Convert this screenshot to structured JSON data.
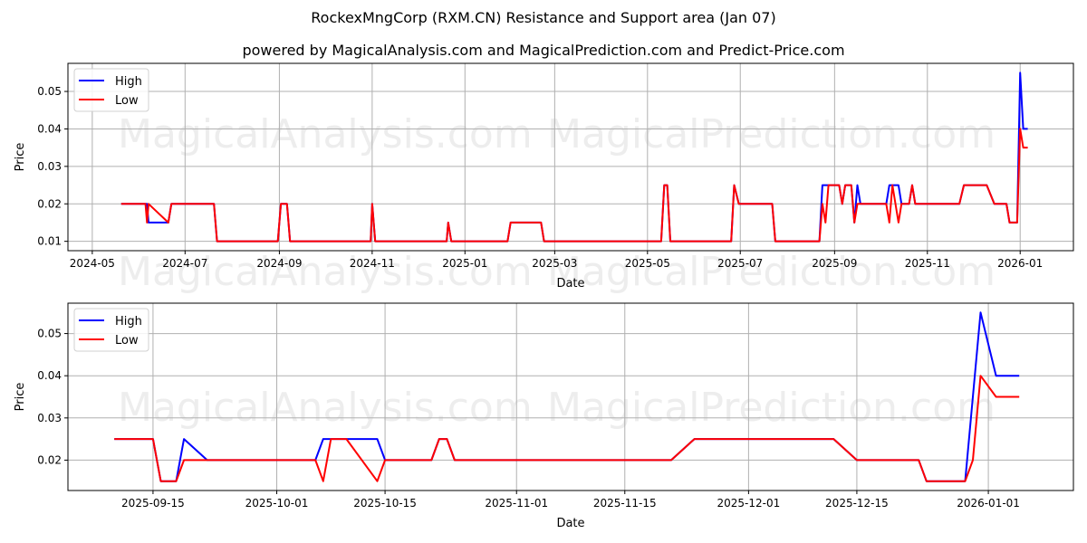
{
  "title": "RockexMngCorp (RXM.CN) Resistance and Support area (Jan 07)",
  "subtitle": "powered by MagicalAnalysis.com and MagicalPrediction.com and Predict-Price.com",
  "watermarks": [
    "MagicalAnalysis.com",
    "MagicalPrediction.com"
  ],
  "colors": {
    "high": "#0000ff",
    "low": "#ff0000",
    "grid": "#b0b0b0"
  },
  "chart_data": [
    {
      "type": "line",
      "title": "",
      "xlabel": "Date",
      "ylabel": "Price",
      "grid": true,
      "legend_position": "upper left",
      "legend": [
        "High",
        "Low"
      ],
      "x_tick_labels": [
        "2024-05",
        "2024-07",
        "2024-09",
        "2024-11",
        "2025-01",
        "2025-03",
        "2025-05",
        "2025-07",
        "2025-09",
        "2025-11",
        "2026-01"
      ],
      "y_tick_labels": [
        "0.01",
        "0.02",
        "0.03",
        "0.04",
        "0.05"
      ],
      "xlim": [
        "2024-04-15",
        "2026-02-05"
      ],
      "ylim": [
        0.0075,
        0.0575
      ],
      "x": [
        "2024-05-20",
        "2024-06-05",
        "2024-06-06",
        "2024-06-07",
        "2024-06-20",
        "2024-06-22",
        "2024-07-20",
        "2024-07-22",
        "2024-08-31",
        "2024-09-02",
        "2024-09-06",
        "2024-09-08",
        "2024-10-31",
        "2024-11-01",
        "2024-11-03",
        "2024-12-20",
        "2024-12-21",
        "2024-12-23",
        "2025-01-29",
        "2025-01-31",
        "2025-02-20",
        "2025-02-22",
        "2025-05-10",
        "2025-05-12",
        "2025-05-14",
        "2025-05-16",
        "2025-06-25",
        "2025-06-27",
        "2025-06-30",
        "2025-07-22",
        "2025-07-24",
        "2025-08-22",
        "2025-08-24",
        "2025-08-26",
        "2025-08-28",
        "2025-09-04",
        "2025-09-06",
        "2025-09-08",
        "2025-09-12",
        "2025-09-14",
        "2025-09-16",
        "2025-09-18",
        "2025-09-20",
        "2025-10-05",
        "2025-10-07",
        "2025-10-09",
        "2025-10-13",
        "2025-10-15",
        "2025-10-20",
        "2025-10-22",
        "2025-10-24",
        "2025-11-22",
        "2025-11-25",
        "2025-12-10",
        "2025-12-15",
        "2025-12-23",
        "2025-12-25",
        "2025-12-30",
        "2026-01-01",
        "2026-01-03",
        "2026-01-06"
      ],
      "series": [
        {
          "name": "High",
          "color": "#0000ff",
          "values": [
            0.02,
            0.02,
            0.02,
            0.015,
            0.015,
            0.02,
            0.02,
            0.01,
            0.01,
            0.02,
            0.02,
            0.01,
            0.01,
            0.02,
            0.01,
            0.01,
            0.015,
            0.01,
            0.01,
            0.015,
            0.015,
            0.01,
            0.01,
            0.025,
            0.025,
            0.01,
            0.01,
            0.025,
            0.02,
            0.02,
            0.01,
            0.01,
            0.025,
            0.025,
            0.025,
            0.025,
            0.02,
            0.025,
            0.025,
            0.015,
            0.025,
            0.02,
            0.02,
            0.02,
            0.025,
            0.025,
            0.025,
            0.02,
            0.02,
            0.025,
            0.02,
            0.02,
            0.025,
            0.025,
            0.02,
            0.02,
            0.015,
            0.015,
            0.055,
            0.04,
            0.04
          ]
        },
        {
          "name": "Low",
          "color": "#ff0000",
          "values": [
            0.02,
            0.02,
            0.015,
            0.02,
            0.015,
            0.02,
            0.02,
            0.01,
            0.01,
            0.02,
            0.02,
            0.01,
            0.01,
            0.02,
            0.01,
            0.01,
            0.015,
            0.01,
            0.01,
            0.015,
            0.015,
            0.01,
            0.01,
            0.025,
            0.025,
            0.01,
            0.01,
            0.025,
            0.02,
            0.02,
            0.01,
            0.01,
            0.02,
            0.015,
            0.025,
            0.025,
            0.02,
            0.025,
            0.025,
            0.015,
            0.02,
            0.02,
            0.02,
            0.02,
            0.015,
            0.025,
            0.015,
            0.02,
            0.02,
            0.025,
            0.02,
            0.02,
            0.025,
            0.025,
            0.02,
            0.02,
            0.015,
            0.015,
            0.04,
            0.035,
            0.035
          ]
        }
      ]
    },
    {
      "type": "line",
      "title": "",
      "xlabel": "Date",
      "ylabel": "Price",
      "grid": true,
      "legend_position": "upper left",
      "legend": [
        "High",
        "Low"
      ],
      "x_tick_labels": [
        "2025-09-15",
        "2025-10-01",
        "2025-10-15",
        "2025-11-01",
        "2025-11-15",
        "2025-12-01",
        "2025-12-15",
        "2026-01-01"
      ],
      "y_tick_labels": [
        "0.02",
        "0.03",
        "0.04",
        "0.05"
      ],
      "xlim": [
        "2025-09-04",
        "2026-01-12"
      ],
      "ylim": [
        0.0128,
        0.0572
      ],
      "x": [
        "2025-09-10",
        "2025-09-11",
        "2025-09-12",
        "2025-09-13",
        "2025-09-14",
        "2025-09-15",
        "2025-09-16",
        "2025-09-17",
        "2025-09-18",
        "2025-09-19",
        "2025-09-22",
        "2025-09-23",
        "2025-10-06",
        "2025-10-07",
        "2025-10-08",
        "2025-10-09",
        "2025-10-10",
        "2025-10-13",
        "2025-10-14",
        "2025-10-15",
        "2025-10-20",
        "2025-10-21",
        "2025-10-22",
        "2025-10-23",
        "2025-12-21",
        "2025-11-24",
        "2025-12-09",
        "2025-12-10",
        "2025-12-15",
        "2025-12-22",
        "2025-12-23",
        "2025-12-24",
        "2025-12-28",
        "2025-12-29",
        "2025-12-30",
        "2025-12-31",
        "2026-01-01",
        "2026-01-02",
        "2026-01-05"
      ],
      "series": [
        {
          "name": "High",
          "color": "#0000ff",
          "points": [
            [
              "2025-09-10",
              0.025
            ],
            [
              "2025-09-15",
              0.025
            ],
            [
              "2025-09-16",
              0.015
            ],
            [
              "2025-09-18",
              0.015
            ],
            [
              "2025-09-19",
              0.025
            ],
            [
              "2025-09-22",
              0.02
            ],
            [
              "2025-10-06",
              0.02
            ],
            [
              "2025-10-07",
              0.025
            ],
            [
              "2025-10-14",
              0.025
            ],
            [
              "2025-10-15",
              0.02
            ],
            [
              "2025-10-21",
              0.02
            ],
            [
              "2025-10-22",
              0.025
            ],
            [
              "2025-10-23",
              0.025
            ],
            [
              "2025-10-24",
              0.02
            ],
            [
              "2025-11-21",
              0.02
            ],
            [
              "2025-11-24",
              0.025
            ],
            [
              "2025-12-12",
              0.025
            ],
            [
              "2025-12-15",
              0.02
            ],
            [
              "2025-12-23",
              0.02
            ],
            [
              "2025-12-24",
              0.015
            ],
            [
              "2025-12-29",
              0.015
            ],
            [
              "2025-12-31",
              0.055
            ],
            [
              "2026-01-02",
              0.04
            ],
            [
              "2026-01-05",
              0.04
            ]
          ]
        },
        {
          "name": "Low",
          "color": "#ff0000",
          "points": [
            [
              "2025-09-10",
              0.025
            ],
            [
              "2025-09-15",
              0.025
            ],
            [
              "2025-09-16",
              0.015
            ],
            [
              "2025-09-18",
              0.015
            ],
            [
              "2025-09-19",
              0.02
            ],
            [
              "2025-09-22",
              0.02
            ],
            [
              "2025-10-06",
              0.02
            ],
            [
              "2025-10-07",
              0.015
            ],
            [
              "2025-10-08",
              0.025
            ],
            [
              "2025-10-10",
              0.025
            ],
            [
              "2025-10-14",
              0.015
            ],
            [
              "2025-10-15",
              0.02
            ],
            [
              "2025-10-21",
              0.02
            ],
            [
              "2025-10-22",
              0.025
            ],
            [
              "2025-10-23",
              0.025
            ],
            [
              "2025-10-24",
              0.02
            ],
            [
              "2025-11-21",
              0.02
            ],
            [
              "2025-11-24",
              0.025
            ],
            [
              "2025-12-12",
              0.025
            ],
            [
              "2025-12-15",
              0.02
            ],
            [
              "2025-12-23",
              0.02
            ],
            [
              "2025-12-24",
              0.015
            ],
            [
              "2025-12-29",
              0.015
            ],
            [
              "2025-12-30",
              0.02
            ],
            [
              "2025-12-31",
              0.04
            ],
            [
              "2026-01-02",
              0.035
            ],
            [
              "2026-01-05",
              0.035
            ]
          ]
        }
      ]
    }
  ]
}
